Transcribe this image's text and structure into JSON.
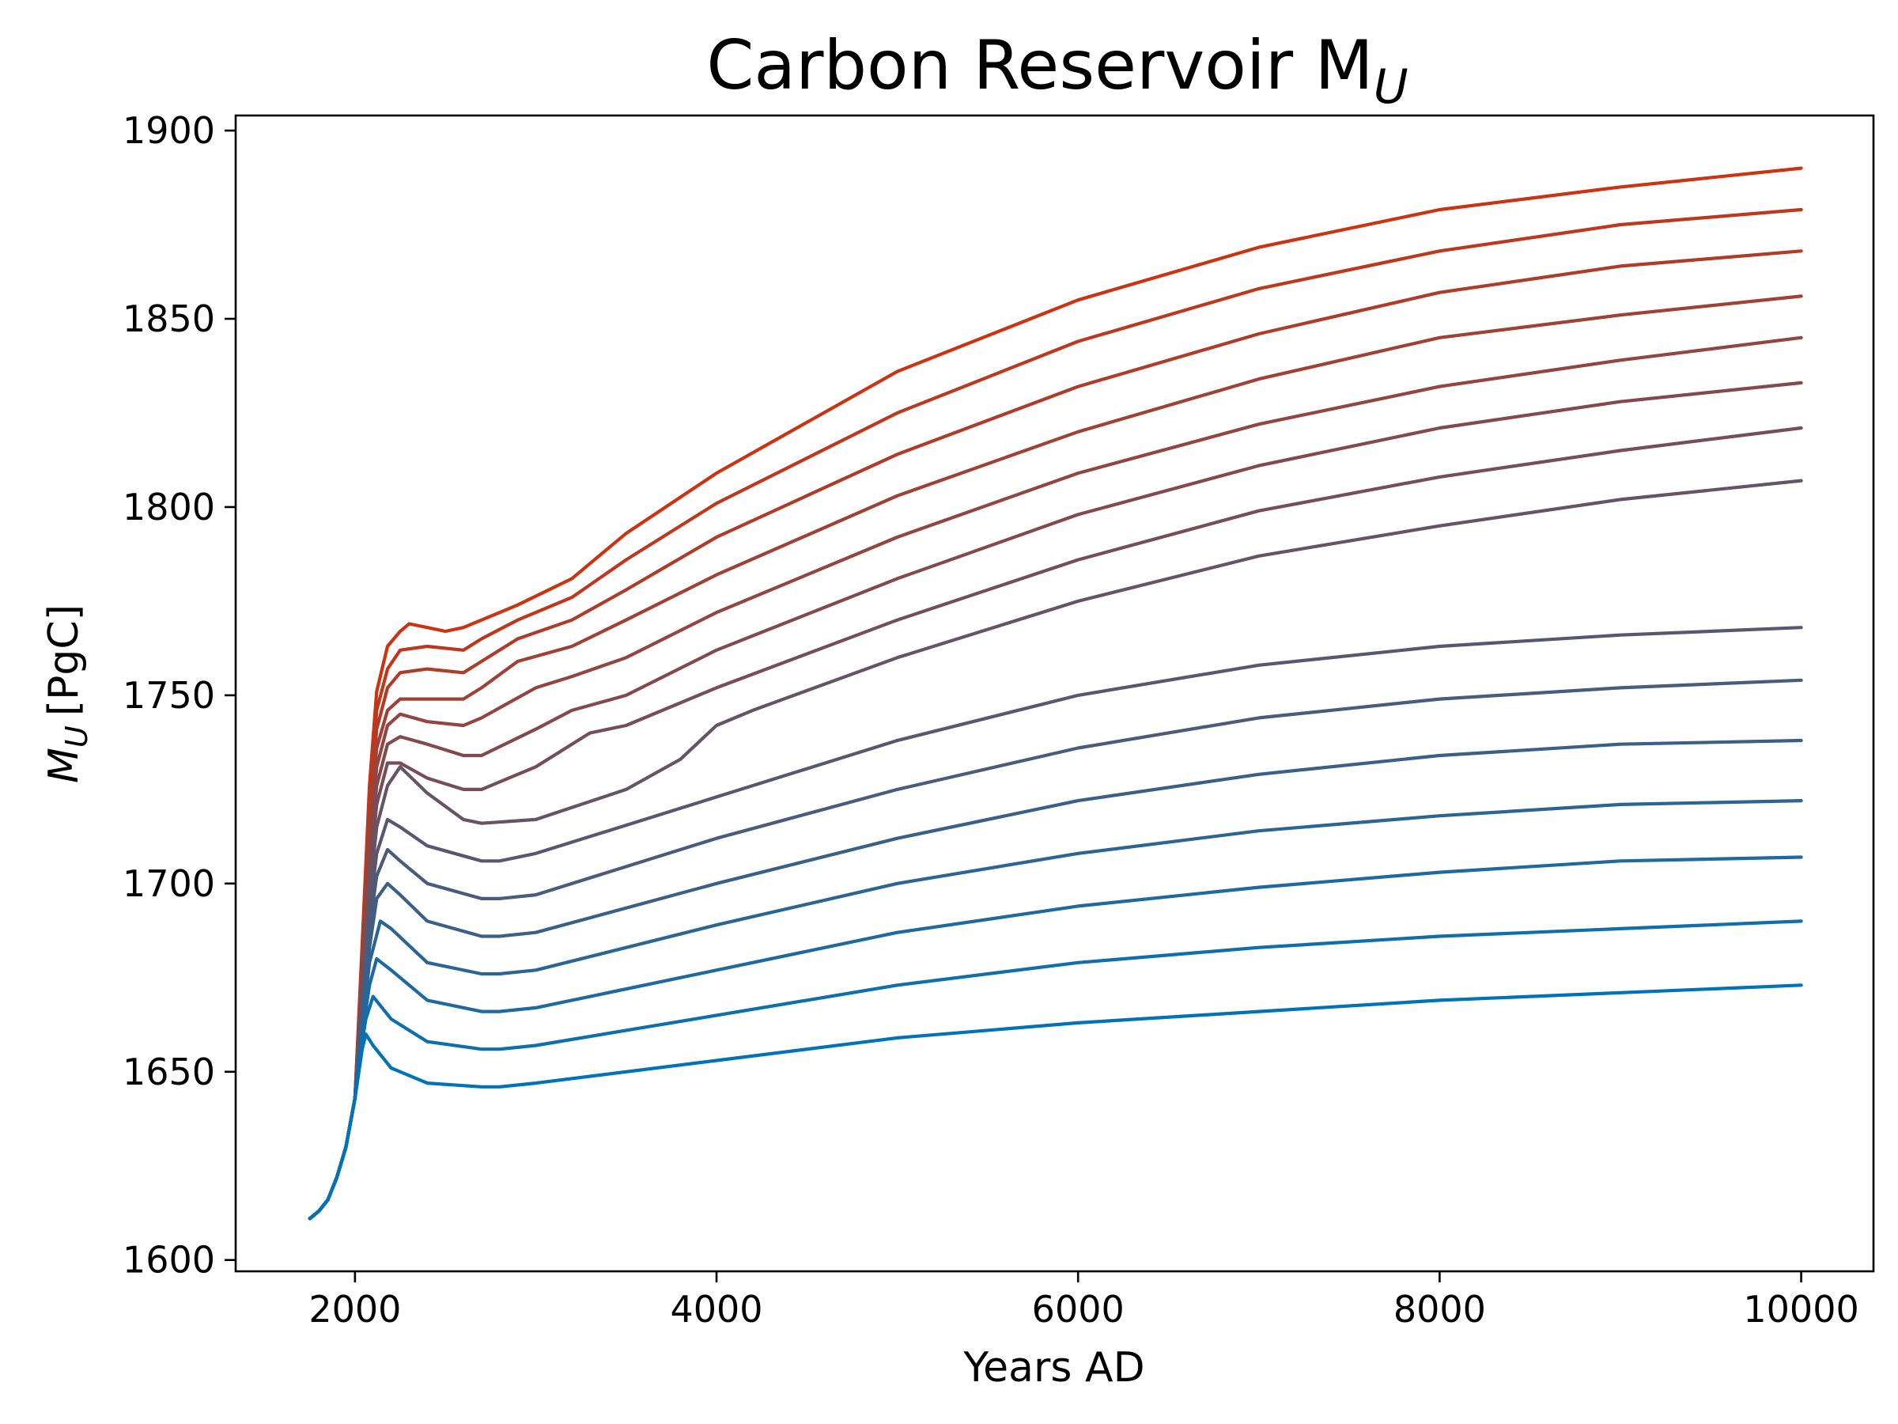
{
  "chart_data": {
    "type": "line",
    "title": "Carbon Reservoir M",
    "title_subscript": "U",
    "xlabel": "Years AD",
    "ylabel": "M",
    "ylabel_subscript": "U",
    "ylabel_units": "[PgC]",
    "xlim": [
      1340,
      10400
    ],
    "ylim": [
      1597,
      1904
    ],
    "x_ticks": [
      2000,
      4000,
      6000,
      8000,
      10000
    ],
    "y_ticks": [
      1600,
      1650,
      1700,
      1750,
      1800,
      1850,
      1900
    ],
    "grid": false,
    "legend": "none",
    "color_start": "#0072b8",
    "color_end": "#cc3311",
    "series": [
      {
        "x": [
          1750,
          1800,
          1850,
          1900,
          1950,
          2000,
          2040,
          2060,
          2100,
          2200,
          2400,
          2700,
          2800,
          3000,
          4000,
          5000,
          6000,
          7000,
          8000,
          9000,
          10000
        ],
        "y": [
          1611,
          1613,
          1616,
          1622,
          1630,
          1643,
          1656,
          1660,
          1657,
          1651,
          1647,
          1646,
          1646,
          1647,
          1653,
          1659,
          1663,
          1666,
          1669,
          1671,
          1673
        ]
      },
      {
        "x": [
          1750,
          1800,
          1850,
          1900,
          1950,
          2000,
          2040,
          2060,
          2100,
          2200,
          2400,
          2700,
          2800,
          3000,
          4000,
          5000,
          6000,
          7000,
          8000,
          9000,
          10000
        ],
        "y": [
          1611,
          1613,
          1616,
          1622,
          1630,
          1643,
          1658,
          1664,
          1670,
          1664,
          1658,
          1656,
          1656,
          1657,
          1665,
          1673,
          1679,
          1683,
          1686,
          1688,
          1690
        ]
      },
      {
        "x": [
          1750,
          1800,
          1850,
          1900,
          1950,
          2000,
          2040,
          2080,
          2120,
          2200,
          2400,
          2700,
          2800,
          3000,
          4000,
          5000,
          6000,
          7000,
          8000,
          9000,
          10000
        ],
        "y": [
          1611,
          1613,
          1616,
          1622,
          1630,
          1643,
          1660,
          1673,
          1680,
          1677,
          1669,
          1666,
          1666,
          1667,
          1677,
          1687,
          1694,
          1699,
          1703,
          1706,
          1707
        ]
      },
      {
        "x": [
          1750,
          1800,
          1850,
          1900,
          1950,
          2000,
          2040,
          2080,
          2140,
          2200,
          2400,
          2700,
          2800,
          3000,
          4000,
          5000,
          6000,
          7000,
          8000,
          9000,
          10000
        ],
        "y": [
          1611,
          1613,
          1616,
          1622,
          1630,
          1643,
          1662,
          1679,
          1690,
          1688,
          1679,
          1676,
          1676,
          1677,
          1689,
          1700,
          1708,
          1714,
          1718,
          1721,
          1722
        ]
      },
      {
        "x": [
          1750,
          1800,
          1850,
          1900,
          1950,
          2000,
          2040,
          2080,
          2120,
          2180,
          2250,
          2400,
          2700,
          2800,
          3000,
          4000,
          5000,
          6000,
          7000,
          8000,
          9000,
          10000
        ],
        "y": [
          1611,
          1613,
          1616,
          1622,
          1630,
          1643,
          1664,
          1683,
          1696,
          1700,
          1697,
          1690,
          1686,
          1686,
          1687,
          1700,
          1712,
          1722,
          1729,
          1734,
          1737,
          1738
        ]
      },
      {
        "x": [
          1750,
          1800,
          1850,
          1900,
          1950,
          2000,
          2040,
          2080,
          2120,
          2180,
          2250,
          2400,
          2700,
          2800,
          3000,
          4000,
          5000,
          6000,
          7000,
          8000,
          9000,
          10000
        ],
        "y": [
          1611,
          1613,
          1616,
          1622,
          1630,
          1643,
          1666,
          1688,
          1702,
          1709,
          1706,
          1700,
          1696,
          1696,
          1697,
          1712,
          1725,
          1736,
          1744,
          1749,
          1752,
          1754
        ]
      },
      {
        "x": [
          1750,
          1800,
          1850,
          1900,
          1950,
          2000,
          2040,
          2080,
          2120,
          2180,
          2250,
          2400,
          2700,
          2800,
          3000,
          4000,
          5000,
          6000,
          7000,
          8000,
          9000,
          10000
        ],
        "y": [
          1611,
          1613,
          1616,
          1622,
          1630,
          1643,
          1668,
          1692,
          1708,
          1717,
          1715,
          1710,
          1706,
          1706,
          1708,
          1723,
          1738,
          1750,
          1758,
          1763,
          1766,
          1768
        ]
      },
      {
        "x": [
          1750,
          1800,
          1850,
          1900,
          1950,
          2000,
          2040,
          2080,
          2120,
          2180,
          2250,
          2400,
          2600,
          2700,
          3000,
          3500,
          3800,
          4000,
          4200,
          5000,
          6000,
          7000,
          8000,
          9000,
          10000
        ],
        "y": [
          1611,
          1613,
          1616,
          1622,
          1630,
          1643,
          1670,
          1697,
          1715,
          1726,
          1731,
          1724,
          1717,
          1716,
          1717,
          1725,
          1733,
          1742,
          1746,
          1760,
          1775,
          1787,
          1795,
          1802,
          1807
        ]
      },
      {
        "x": [
          1750,
          1800,
          1850,
          1900,
          1950,
          2000,
          2040,
          2080,
          2120,
          2180,
          2250,
          2400,
          2600,
          2700,
          3000,
          3300,
          3500,
          4000,
          5000,
          6000,
          7000,
          8000,
          9000,
          10000
        ],
        "y": [
          1611,
          1613,
          1616,
          1622,
          1630,
          1643,
          1672,
          1702,
          1721,
          1732,
          1732,
          1728,
          1725,
          1725,
          1731,
          1740,
          1742,
          1752,
          1770,
          1786,
          1799,
          1808,
          1815,
          1821
        ]
      },
      {
        "x": [
          1750,
          1800,
          1850,
          1900,
          1950,
          2000,
          2040,
          2080,
          2120,
          2180,
          2250,
          2400,
          2600,
          2700,
          3000,
          3200,
          3500,
          4000,
          5000,
          6000,
          7000,
          8000,
          9000,
          10000
        ],
        "y": [
          1611,
          1613,
          1616,
          1622,
          1630,
          1643,
          1674,
          1706,
          1726,
          1737,
          1739,
          1737,
          1734,
          1734,
          1741,
          1746,
          1750,
          1762,
          1781,
          1798,
          1811,
          1821,
          1828,
          1833
        ]
      },
      {
        "x": [
          1750,
          1800,
          1850,
          1900,
          1950,
          2000,
          2040,
          2080,
          2120,
          2180,
          2250,
          2400,
          2600,
          2700,
          3000,
          3200,
          3500,
          4000,
          5000,
          6000,
          7000,
          8000,
          9000,
          10000
        ],
        "y": [
          1611,
          1613,
          1616,
          1622,
          1630,
          1643,
          1676,
          1710,
          1731,
          1742,
          1745,
          1743,
          1742,
          1744,
          1752,
          1755,
          1760,
          1772,
          1792,
          1809,
          1822,
          1832,
          1839,
          1845
        ]
      },
      {
        "x": [
          1750,
          1800,
          1850,
          1900,
          1950,
          2000,
          2040,
          2080,
          2120,
          2180,
          2250,
          2400,
          2600,
          2700,
          2900,
          3200,
          3500,
          4000,
          5000,
          6000,
          7000,
          8000,
          9000,
          10000
        ],
        "y": [
          1611,
          1613,
          1616,
          1622,
          1630,
          1643,
          1678,
          1714,
          1736,
          1746,
          1749,
          1749,
          1749,
          1752,
          1759,
          1763,
          1770,
          1782,
          1803,
          1820,
          1834,
          1845,
          1851,
          1856
        ]
      },
      {
        "x": [
          1750,
          1800,
          1850,
          1900,
          1950,
          2000,
          2040,
          2080,
          2120,
          2180,
          2250,
          2400,
          2600,
          2700,
          2900,
          3200,
          3500,
          4000,
          5000,
          6000,
          7000,
          8000,
          9000,
          10000
        ],
        "y": [
          1611,
          1613,
          1616,
          1622,
          1630,
          1643,
          1680,
          1718,
          1741,
          1752,
          1756,
          1757,
          1756,
          1759,
          1765,
          1770,
          1778,
          1792,
          1814,
          1832,
          1846,
          1857,
          1864,
          1868
        ]
      },
      {
        "x": [
          1750,
          1800,
          1850,
          1900,
          1950,
          2000,
          2040,
          2080,
          2120,
          2180,
          2250,
          2400,
          2600,
          2700,
          2900,
          3200,
          3500,
          4000,
          5000,
          6000,
          7000,
          8000,
          9000,
          10000
        ],
        "y": [
          1611,
          1613,
          1616,
          1622,
          1630,
          1643,
          1682,
          1722,
          1746,
          1757,
          1762,
          1763,
          1762,
          1765,
          1770,
          1776,
          1786,
          1801,
          1825,
          1844,
          1858,
          1868,
          1875,
          1879
        ]
      },
      {
        "x": [
          1750,
          1800,
          1850,
          1900,
          1950,
          2000,
          2040,
          2080,
          2120,
          2180,
          2250,
          2300,
          2400,
          2500,
          2600,
          2700,
          2900,
          3200,
          3500,
          4000,
          5000,
          6000,
          7000,
          8000,
          9000,
          10000
        ],
        "y": [
          1611,
          1613,
          1616,
          1622,
          1630,
          1643,
          1684,
          1726,
          1751,
          1763,
          1767,
          1769,
          1768,
          1767,
          1768,
          1770,
          1774,
          1781,
          1793,
          1809,
          1836,
          1855,
          1869,
          1879,
          1885,
          1890
        ]
      }
    ]
  }
}
